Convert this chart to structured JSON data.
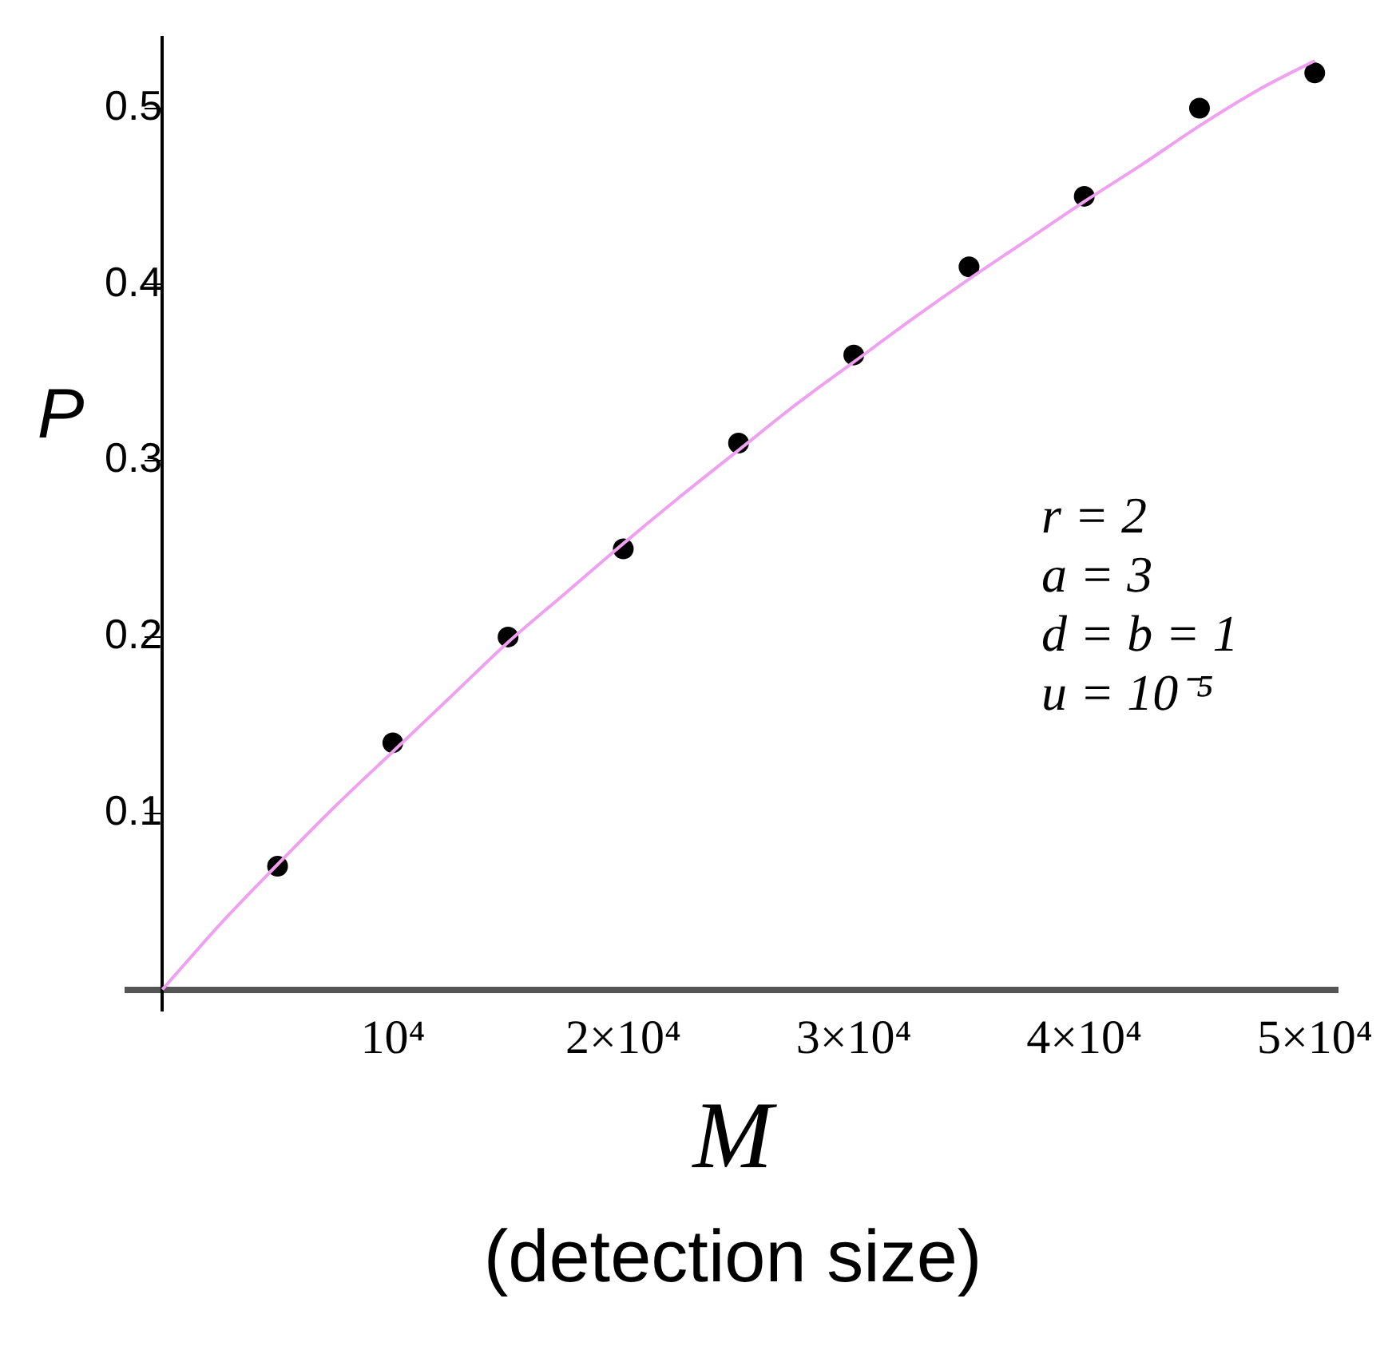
{
  "chart_data": {
    "type": "line",
    "xlabel": "M\n(detection size)",
    "ylabel": "P",
    "xlim": [
      -1500,
      51000
    ],
    "ylim": [
      -0.012,
      0.54
    ],
    "xticks": [
      {
        "value": 10000,
        "label": "10⁴"
      },
      {
        "value": 20000,
        "label": "2×10⁴"
      },
      {
        "value": 30000,
        "label": "3×10⁴"
      },
      {
        "value": 40000,
        "label": "4×10⁴"
      },
      {
        "value": 50000,
        "label": "5×10⁴"
      }
    ],
    "yticks": [
      0.1,
      0.2,
      0.3,
      0.4,
      0.5
    ],
    "grid": false,
    "legend": false,
    "series": [
      {
        "color": "#f0a0f0",
        "marker": "none",
        "x": [
          0,
          2500,
          5000,
          7500,
          10000,
          12500,
          15000,
          17500,
          20000,
          22500,
          25000,
          27500,
          30000,
          32500,
          35000,
          37500,
          40000,
          42500,
          45000,
          47500,
          50000
        ],
        "values": [
          0,
          0.037,
          0.071,
          0.104,
          0.135,
          0.166,
          0.197,
          0.225,
          0.253,
          0.28,
          0.306,
          0.332,
          0.356,
          0.38,
          0.403,
          0.425,
          0.447,
          0.468,
          0.49,
          0.51,
          0.527
        ]
      },
      {
        "type": "scatter",
        "color": "#000000",
        "marker": "circle",
        "x": [
          5000,
          10000,
          15000,
          20000,
          25000,
          30000,
          35000,
          40000,
          45000,
          50000
        ],
        "values": [
          0.07,
          0.14,
          0.2,
          0.25,
          0.31,
          0.36,
          0.41,
          0.45,
          0.5,
          0.52
        ]
      }
    ],
    "annotations": [
      "r = 2",
      "a = 3",
      "d = b = 1",
      "u = 10⁻⁵"
    ]
  }
}
